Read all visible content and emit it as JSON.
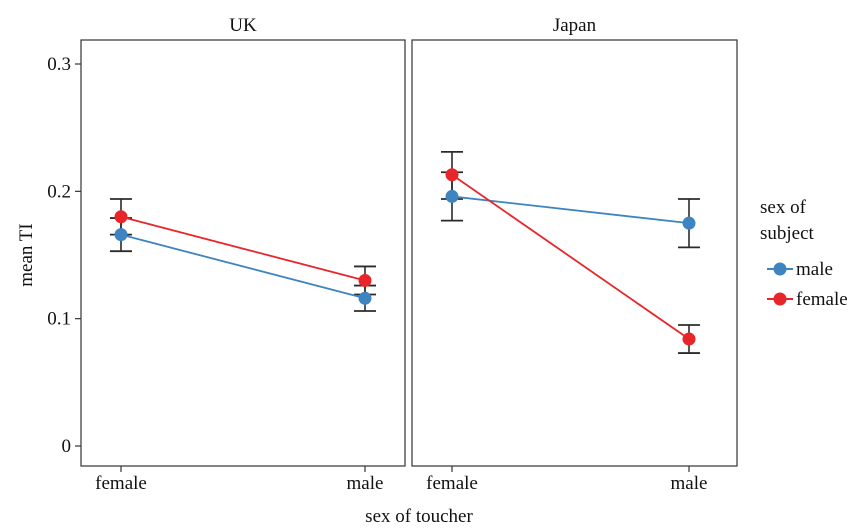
{
  "chart_data": {
    "type": "line",
    "xlabel": "sex of toucher",
    "ylabel": "mean TI",
    "ylim": [
      0,
      0.3
    ],
    "yticks": [
      "0",
      "0.1",
      "0.2",
      "0.3"
    ],
    "categories": [
      "female",
      "male"
    ],
    "legend": {
      "title_lines": [
        "sex of",
        "subject"
      ],
      "position": "right",
      "entries": [
        {
          "name": "male",
          "color": "#3e84c0"
        },
        {
          "name": "female",
          "color": "#e8262a"
        }
      ]
    },
    "panels": [
      {
        "title": "UK",
        "series": [
          {
            "name": "male",
            "values": [
              0.166,
              0.116
            ],
            "error": [
              [
                0.153,
                0.179
              ],
              [
                0.106,
                0.126
              ]
            ]
          },
          {
            "name": "female",
            "values": [
              0.18,
              0.13
            ],
            "error": [
              [
                0.166,
                0.194
              ],
              [
                0.119,
                0.141
              ]
            ]
          }
        ]
      },
      {
        "title": "Japan",
        "series": [
          {
            "name": "male",
            "values": [
              0.196,
              0.175
            ],
            "error": [
              [
                0.177,
                0.215
              ],
              [
                0.156,
                0.194
              ]
            ]
          },
          {
            "name": "female",
            "values": [
              0.213,
              0.084
            ],
            "error": [
              [
                0.194,
                0.231
              ],
              [
                0.073,
                0.095
              ]
            ]
          }
        ]
      }
    ]
  }
}
